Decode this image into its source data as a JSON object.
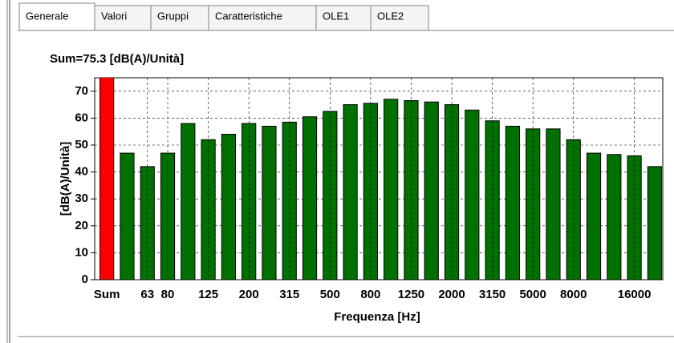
{
  "tabs": [
    "Generale",
    "Valori",
    "Gruppi",
    "Caratteristiche",
    "OLE1",
    "OLE2"
  ],
  "chart_data": {
    "type": "bar",
    "title": "Sum=75.3 [dB(A)/Unità]",
    "y_label": "[dB(A)/Unità]",
    "x_label": "Frequenza [Hz]",
    "categories": [
      "Sum",
      null,
      "63",
      "80",
      null,
      "125",
      null,
      "200",
      null,
      "315",
      null,
      "500",
      null,
      "800",
      null,
      "1250",
      null,
      "2000",
      null,
      "3150",
      null,
      "5000",
      null,
      "8000",
      null,
      null,
      "16000",
      null
    ],
    "values": [
      75.3,
      47,
      42,
      47,
      58,
      52,
      54,
      58,
      57,
      58.5,
      60.5,
      62.5,
      65,
      65.5,
      67,
      66.5,
      66,
      65,
      63,
      59,
      57,
      56,
      56,
      52,
      47,
      46.5,
      46,
      42
    ],
    "colors": [
      "#ff0000",
      "#007000",
      "#007000",
      "#007000",
      "#007000",
      "#007000",
      "#007000",
      "#007000",
      "#007000",
      "#007000",
      "#007000",
      "#007000",
      "#007000",
      "#007000",
      "#007000",
      "#007000",
      "#007000",
      "#007000",
      "#007000",
      "#007000",
      "#007000",
      "#007000",
      "#007000",
      "#007000",
      "#007000",
      "#007000",
      "#007000",
      "#007000"
    ],
    "ylim": [
      0,
      75
    ],
    "yticks": [
      0,
      10,
      20,
      30,
      40,
      50,
      60,
      70
    ],
    "grid": true
  }
}
